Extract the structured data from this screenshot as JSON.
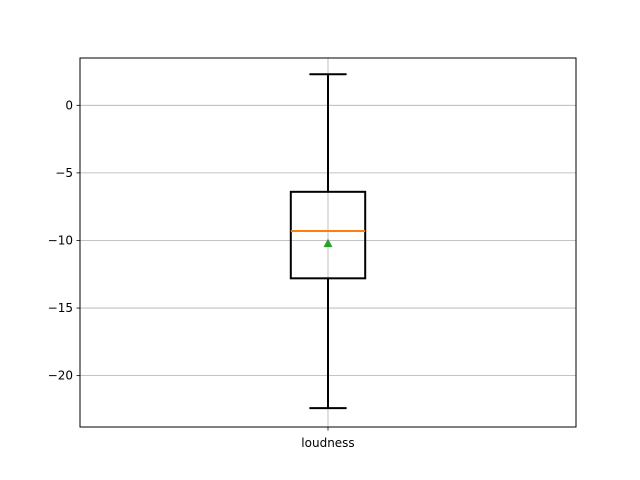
{
  "chart_data": {
    "type": "box",
    "categories": [
      "loudness"
    ],
    "series": [
      {
        "whisker_low": -22.4,
        "q1": -12.8,
        "median": -9.3,
        "mean": -10.2,
        "q3": -6.4,
        "whisker_high": 2.3
      }
    ],
    "ylim": [
      -23.8,
      3.5
    ],
    "yticks": [
      0,
      -5,
      -10,
      -15,
      -20
    ],
    "ytick_labels": [
      "0",
      "−5",
      "−10",
      "−15",
      "−20"
    ],
    "grid": true,
    "colors": {
      "box": "#000000",
      "median": "#ff7f0e",
      "mean": "#2ca02c",
      "grid": "#b0b0b0"
    }
  }
}
